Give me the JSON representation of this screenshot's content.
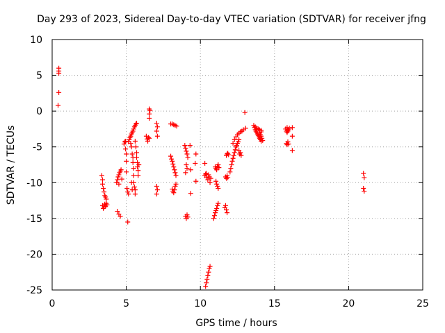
{
  "chart_data": {
    "type": "scatter",
    "title": "Day 293 of 2023, Sidereal Day-to-day VTEC variation (SDTVAR) for receiver jfng",
    "xlabel": "GPS time / hours",
    "ylabel": "SDTVAR / TECUs",
    "xlim": [
      0,
      25
    ],
    "ylim": [
      -25,
      10
    ],
    "xticks": [
      0,
      5,
      10,
      15,
      20,
      25
    ],
    "yticks": [
      -25,
      -20,
      -15,
      -10,
      -5,
      0,
      5,
      10
    ],
    "xtick_labels": [
      "0",
      "5",
      "10",
      "15",
      "20",
      "25"
    ],
    "ytick_labels": [
      "-25",
      "-20",
      "-15",
      "-10",
      "-5",
      "0",
      "5",
      "10"
    ],
    "grid": true,
    "marker": "plus",
    "color": "#ff0000",
    "points": [
      [
        0.45,
        6.0
      ],
      [
        0.45,
        5.6
      ],
      [
        0.45,
        5.3
      ],
      [
        0.45,
        2.6
      ],
      [
        0.4,
        0.8
      ],
      [
        3.35,
        -9.0
      ],
      [
        3.4,
        -9.6
      ],
      [
        3.4,
        -10.2
      ],
      [
        3.45,
        -10.8
      ],
      [
        3.5,
        -11.3
      ],
      [
        3.55,
        -11.8
      ],
      [
        3.6,
        -12.0
      ],
      [
        3.65,
        -12.3
      ],
      [
        3.4,
        -13.2
      ],
      [
        3.45,
        -13.6
      ],
      [
        3.5,
        -13.4
      ],
      [
        3.55,
        -13.0
      ],
      [
        3.6,
        -13.3
      ],
      [
        3.65,
        -12.9
      ],
      [
        3.7,
        -13.1
      ],
      [
        4.35,
        -10.0
      ],
      [
        4.4,
        -9.6
      ],
      [
        4.45,
        -9.2
      ],
      [
        4.5,
        -8.9
      ],
      [
        4.55,
        -8.6
      ],
      [
        4.6,
        -8.4
      ],
      [
        4.65,
        -8.2
      ],
      [
        4.7,
        -9.5
      ],
      [
        4.5,
        -10.2
      ],
      [
        4.4,
        -14.0
      ],
      [
        4.5,
        -14.4
      ],
      [
        4.6,
        -14.7
      ],
      [
        4.85,
        -4.6
      ],
      [
        4.9,
        -4.3
      ],
      [
        4.95,
        -4.2
      ],
      [
        4.95,
        -5.3
      ],
      [
        5.0,
        -6.0
      ],
      [
        5.0,
        -7.0
      ],
      [
        5.0,
        -8.5
      ],
      [
        5.05,
        -10.8
      ],
      [
        5.1,
        -11.3
      ],
      [
        5.15,
        -11.6
      ],
      [
        5.1,
        -15.5
      ],
      [
        5.15,
        -4.3
      ],
      [
        5.2,
        -4.0
      ],
      [
        5.25,
        -3.7
      ],
      [
        5.3,
        -3.5
      ],
      [
        5.35,
        -3.2
      ],
      [
        5.4,
        -3.0
      ],
      [
        5.45,
        -2.8
      ],
      [
        5.5,
        -2.5
      ],
      [
        5.55,
        -2.2
      ],
      [
        5.6,
        -2.0
      ],
      [
        5.65,
        -1.8
      ],
      [
        5.7,
        -1.7
      ],
      [
        5.3,
        -4.5
      ],
      [
        5.35,
        -5.0
      ],
      [
        5.4,
        -6.0
      ],
      [
        5.45,
        -6.5
      ],
      [
        5.45,
        -7.2
      ],
      [
        5.5,
        -8.0
      ],
      [
        5.5,
        -9.0
      ],
      [
        5.5,
        -10.0
      ],
      [
        5.55,
        -10.6
      ],
      [
        5.6,
        -11.0
      ],
      [
        5.6,
        -11.6
      ],
      [
        5.35,
        -10.0
      ],
      [
        5.4,
        -11.0
      ],
      [
        5.6,
        -4.2
      ],
      [
        5.65,
        -5.0
      ],
      [
        5.7,
        -5.8
      ],
      [
        5.7,
        -6.5
      ],
      [
        5.75,
        -7.2
      ],
      [
        5.75,
        -7.8
      ],
      [
        5.8,
        -8.3
      ],
      [
        5.8,
        -9.0
      ],
      [
        5.85,
        -7.5
      ],
      [
        6.35,
        -3.5
      ],
      [
        6.4,
        -3.9
      ],
      [
        6.45,
        -4.2
      ],
      [
        6.5,
        -3.7
      ],
      [
        6.55,
        -3.8
      ],
      [
        6.55,
        0.3
      ],
      [
        6.6,
        0.1
      ],
      [
        6.55,
        -0.4
      ],
      [
        6.55,
        -1.0
      ],
      [
        7.05,
        -1.7
      ],
      [
        7.1,
        -2.2
      ],
      [
        7.05,
        -2.8
      ],
      [
        7.1,
        -3.5
      ],
      [
        7.05,
        -10.5
      ],
      [
        7.1,
        -11.0
      ],
      [
        7.05,
        -11.6
      ],
      [
        8.0,
        -1.8
      ],
      [
        8.1,
        -1.8
      ],
      [
        8.2,
        -1.9
      ],
      [
        8.3,
        -2.0
      ],
      [
        8.4,
        -2.1
      ],
      [
        8.0,
        -6.3
      ],
      [
        8.05,
        -6.7
      ],
      [
        8.1,
        -7.0
      ],
      [
        8.15,
        -7.4
      ],
      [
        8.2,
        -7.8
      ],
      [
        8.25,
        -8.2
      ],
      [
        8.3,
        -8.6
      ],
      [
        8.35,
        -9.0
      ],
      [
        8.1,
        -10.9
      ],
      [
        8.15,
        -11.2
      ],
      [
        8.2,
        -11.4
      ],
      [
        8.25,
        -11.0
      ],
      [
        8.3,
        -10.5
      ],
      [
        8.35,
        -10.2
      ],
      [
        8.95,
        -4.8
      ],
      [
        9.0,
        -5.2
      ],
      [
        9.05,
        -5.6
      ],
      [
        9.1,
        -6.0
      ],
      [
        9.15,
        -6.5
      ],
      [
        9.05,
        -7.5
      ],
      [
        9.1,
        -8.0
      ],
      [
        9.0,
        -8.6
      ],
      [
        9.3,
        -4.8
      ],
      [
        9.35,
        -8.2
      ],
      [
        9.35,
        -11.5
      ],
      [
        9.0,
        -14.7
      ],
      [
        9.05,
        -15.0
      ],
      [
        9.1,
        -14.5
      ],
      [
        9.15,
        -14.8
      ],
      [
        9.65,
        -7.3
      ],
      [
        9.7,
        -6.0
      ],
      [
        9.7,
        -9.8
      ],
      [
        10.3,
        -9.0
      ],
      [
        10.4,
        -9.3
      ],
      [
        10.5,
        -9.6
      ],
      [
        10.6,
        -9.2
      ],
      [
        10.7,
        -9.4
      ],
      [
        10.4,
        -8.7
      ],
      [
        10.55,
        -8.9
      ],
      [
        10.65,
        -10.0
      ],
      [
        10.3,
        -7.3
      ],
      [
        10.35,
        -8.8
      ],
      [
        10.35,
        -24.5
      ],
      [
        10.4,
        -24.0
      ],
      [
        10.45,
        -23.5
      ],
      [
        10.5,
        -23.0
      ],
      [
        10.55,
        -22.5
      ],
      [
        10.6,
        -22.0
      ],
      [
        10.65,
        -21.7
      ],
      [
        10.9,
        -15.0
      ],
      [
        10.95,
        -14.6
      ],
      [
        11.0,
        -14.2
      ],
      [
        11.05,
        -13.9
      ],
      [
        11.1,
        -13.6
      ],
      [
        11.15,
        -13.2
      ],
      [
        11.2,
        -12.9
      ],
      [
        11.0,
        -7.8
      ],
      [
        11.05,
        -8.0
      ],
      [
        11.1,
        -8.2
      ],
      [
        11.15,
        -7.7
      ],
      [
        11.2,
        -7.5
      ],
      [
        11.25,
        -7.9
      ],
      [
        11.05,
        -9.8
      ],
      [
        11.1,
        -10.2
      ],
      [
        11.15,
        -10.5
      ],
      [
        11.2,
        -10.8
      ],
      [
        11.7,
        -9.2
      ],
      [
        11.75,
        -9.4
      ],
      [
        11.8,
        -9.0
      ],
      [
        11.85,
        -9.3
      ],
      [
        11.65,
        -13.5
      ],
      [
        11.7,
        -13.2
      ],
      [
        11.75,
        -13.8
      ],
      [
        11.8,
        -14.2
      ],
      [
        11.75,
        -6.2
      ],
      [
        11.8,
        -6.0
      ],
      [
        11.85,
        -5.9
      ],
      [
        11.9,
        -6.1
      ],
      [
        12.0,
        -8.5
      ],
      [
        12.05,
        -8.0
      ],
      [
        12.1,
        -7.5
      ],
      [
        12.15,
        -7.0
      ],
      [
        12.2,
        -6.6
      ],
      [
        12.25,
        -6.2
      ],
      [
        12.3,
        -5.8
      ],
      [
        12.35,
        -5.4
      ],
      [
        12.4,
        -5.0
      ],
      [
        12.45,
        -4.8
      ],
      [
        12.5,
        -4.5
      ],
      [
        12.55,
        -4.3
      ],
      [
        12.6,
        -4.0
      ],
      [
        12.2,
        -4.5
      ],
      [
        12.3,
        -4.0
      ],
      [
        12.4,
        -3.6
      ],
      [
        12.5,
        -3.3
      ],
      [
        12.6,
        -3.1
      ],
      [
        12.7,
        -2.9
      ],
      [
        12.8,
        -2.8
      ],
      [
        12.9,
        -2.6
      ],
      [
        12.6,
        -5.5
      ],
      [
        12.65,
        -6.0
      ],
      [
        12.7,
        -5.8
      ],
      [
        12.75,
        -6.2
      ],
      [
        13.0,
        -0.2
      ],
      [
        13.05,
        -2.4
      ],
      [
        13.6,
        -2.0
      ],
      [
        13.65,
        -2.3
      ],
      [
        13.7,
        -2.6
      ],
      [
        13.75,
        -2.8
      ],
      [
        13.8,
        -3.0
      ],
      [
        13.85,
        -3.2
      ],
      [
        13.9,
        -3.4
      ],
      [
        13.95,
        -3.6
      ],
      [
        14.0,
        -3.8
      ],
      [
        14.05,
        -4.0
      ],
      [
        14.1,
        -4.2
      ],
      [
        13.7,
        -2.2
      ],
      [
        13.8,
        -2.4
      ],
      [
        13.9,
        -2.5
      ],
      [
        14.0,
        -2.6
      ],
      [
        14.1,
        -2.7
      ],
      [
        14.0,
        -3.0
      ],
      [
        14.05,
        -3.3
      ],
      [
        14.1,
        -3.5
      ],
      [
        14.15,
        -3.8
      ],
      [
        14.2,
        -4.1
      ],
      [
        14.1,
        -2.9
      ],
      [
        15.75,
        -2.5
      ],
      [
        15.8,
        -2.8
      ],
      [
        15.85,
        -3.0
      ],
      [
        15.9,
        -2.8
      ],
      [
        15.95,
        -2.6
      ],
      [
        16.0,
        -2.4
      ],
      [
        15.85,
        -2.3
      ],
      [
        15.8,
        -4.5
      ],
      [
        15.85,
        -4.7
      ],
      [
        15.9,
        -4.3
      ],
      [
        15.95,
        -4.6
      ],
      [
        16.2,
        -2.3
      ],
      [
        16.2,
        -3.5
      ],
      [
        16.2,
        -5.5
      ],
      [
        21.0,
        -8.7
      ],
      [
        21.05,
        -9.3
      ],
      [
        21.0,
        -10.8
      ],
      [
        21.05,
        -11.2
      ]
    ]
  }
}
